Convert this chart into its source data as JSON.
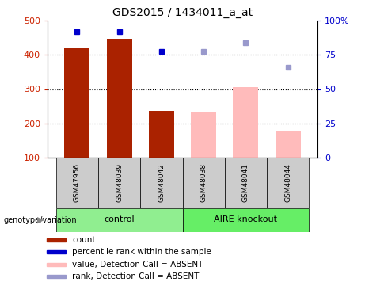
{
  "title": "GDS2015 / 1434011_a_at",
  "samples": [
    "GSM47956",
    "GSM48039",
    "GSM48042",
    "GSM48038",
    "GSM48041",
    "GSM48044"
  ],
  "bar_values": [
    420,
    448,
    237,
    234,
    305,
    175
  ],
  "bar_colors": [
    "#AA2200",
    "#AA2200",
    "#AA2200",
    "#FFBBBB",
    "#FFBBBB",
    "#FFBBBB"
  ],
  "dot_values_left": [
    468,
    468,
    410,
    410,
    435,
    363
  ],
  "dot_colors": [
    "#0000CC",
    "#0000CC",
    "#0000CC",
    "#9999CC",
    "#9999CC",
    "#9999CC"
  ],
  "ylim_left": [
    100,
    500
  ],
  "ylim_right": [
    0,
    100
  ],
  "yticks_left": [
    100,
    200,
    300,
    400,
    500
  ],
  "yticks_right": [
    0,
    25,
    50,
    75,
    100
  ],
  "ytick_labels_right": [
    "0",
    "25",
    "50",
    "75",
    "100%"
  ],
  "grid_values": [
    200,
    300,
    400
  ],
  "control_label": "control",
  "knockout_label": "AIRE knockout",
  "genotype_label": "genotype/variation",
  "legend_items": [
    {
      "label": "count",
      "color": "#AA2200"
    },
    {
      "label": "percentile rank within the sample",
      "color": "#0000CC"
    },
    {
      "label": "value, Detection Call = ABSENT",
      "color": "#FFBBBB"
    },
    {
      "label": "rank, Detection Call = ABSENT",
      "color": "#9999CC"
    }
  ],
  "bar_width": 0.6,
  "fig_bg": "#ffffff",
  "left_color": "#CC2200",
  "right_color": "#0000CC"
}
